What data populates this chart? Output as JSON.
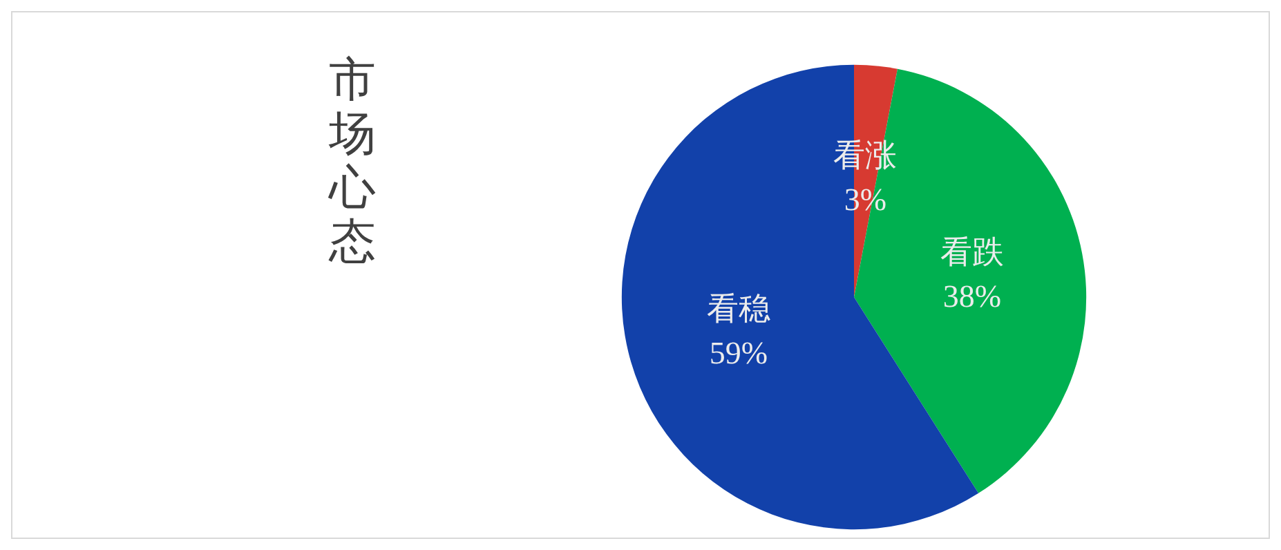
{
  "chart_data": {
    "type": "pie",
    "title": "市场心态",
    "categories": [
      "看涨",
      "看跌",
      "看稳"
    ],
    "values": [
      3,
      38,
      59
    ],
    "colors": [
      "#d73a31",
      "#00b050",
      "#1241aa"
    ],
    "value_labels": [
      "3%",
      "38%",
      "59%"
    ]
  }
}
